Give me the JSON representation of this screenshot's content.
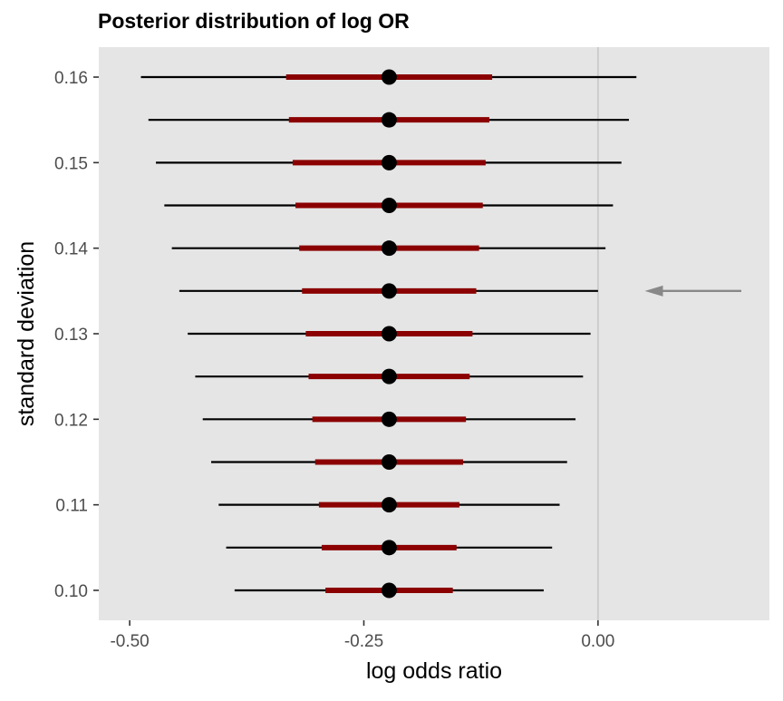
{
  "chart_data": {
    "type": "interval",
    "title": "Posterior distribution of log OR",
    "xlabel": "log odds ratio",
    "ylabel": "standard deviation",
    "xlim": [
      -0.533,
      0.183
    ],
    "ylim": [
      0.0965,
      0.1635
    ],
    "x_ticks": [
      -0.5,
      -0.25,
      0.0
    ],
    "x_tick_labels": [
      "-0.50",
      "-0.25",
      "0.00"
    ],
    "y_ticks": [
      0.1,
      0.11,
      0.12,
      0.13,
      0.14,
      0.15,
      0.16
    ],
    "y_tick_labels": [
      "0.10",
      "0.11",
      "0.12",
      "0.13",
      "0.14",
      "0.15",
      "0.16"
    ],
    "reference_line_x": 0.0,
    "point_color": "#000000",
    "inner_interval_color": "#8b0000",
    "outer_interval_color": "#000000",
    "panel_background": "#e5e5e5",
    "reference_line_color": "#cccccc",
    "arrow_color": "#888888",
    "grid": false,
    "arrow_annotation": {
      "y": 0.135,
      "x_start": 0.153,
      "x_end": 0.05
    },
    "series": [
      {
        "sd": 0.1,
        "point": -0.223,
        "inner": [
          -0.291,
          -0.155
        ],
        "outer": [
          -0.388,
          -0.058
        ]
      },
      {
        "sd": 0.105,
        "point": -0.223,
        "inner": [
          -0.295,
          -0.151
        ],
        "outer": [
          -0.397,
          -0.049
        ]
      },
      {
        "sd": 0.11,
        "point": -0.223,
        "inner": [
          -0.298,
          -0.148
        ],
        "outer": [
          -0.405,
          -0.041
        ]
      },
      {
        "sd": 0.115,
        "point": -0.223,
        "inner": [
          -0.302,
          -0.144
        ],
        "outer": [
          -0.413,
          -0.033
        ]
      },
      {
        "sd": 0.12,
        "point": -0.223,
        "inner": [
          -0.305,
          -0.141
        ],
        "outer": [
          -0.422,
          -0.024
        ]
      },
      {
        "sd": 0.125,
        "point": -0.223,
        "inner": [
          -0.309,
          -0.137
        ],
        "outer": [
          -0.43,
          -0.016
        ]
      },
      {
        "sd": 0.13,
        "point": -0.223,
        "inner": [
          -0.312,
          -0.134
        ],
        "outer": [
          -0.438,
          -0.008
        ]
      },
      {
        "sd": 0.135,
        "point": -0.223,
        "inner": [
          -0.316,
          -0.13
        ],
        "outer": [
          -0.447,
          0.0
        ]
      },
      {
        "sd": 0.14,
        "point": -0.223,
        "inner": [
          -0.319,
          -0.127
        ],
        "outer": [
          -0.455,
          0.008
        ]
      },
      {
        "sd": 0.145,
        "point": -0.223,
        "inner": [
          -0.323,
          -0.123
        ],
        "outer": [
          -0.463,
          0.016
        ]
      },
      {
        "sd": 0.15,
        "point": -0.223,
        "inner": [
          -0.326,
          -0.12
        ],
        "outer": [
          -0.472,
          0.025
        ]
      },
      {
        "sd": 0.155,
        "point": -0.223,
        "inner": [
          -0.33,
          -0.116
        ],
        "outer": [
          -0.48,
          0.033
        ]
      },
      {
        "sd": 0.16,
        "point": -0.223,
        "inner": [
          -0.333,
          -0.113
        ],
        "outer": [
          -0.488,
          0.041
        ]
      }
    ]
  }
}
